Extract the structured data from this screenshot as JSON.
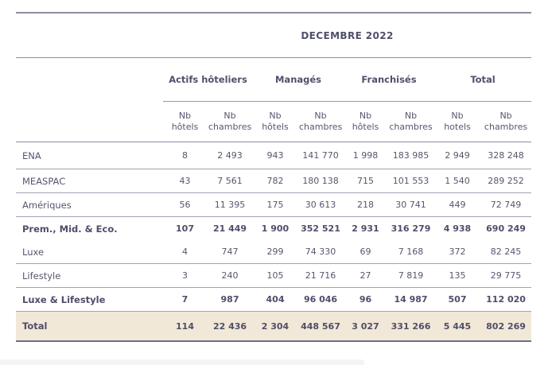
{
  "title": "DECEMBRE 2022",
  "table": {
    "groups": [
      {
        "label": "Actifs hôteliers"
      },
      {
        "label": "Managés"
      },
      {
        "label": "Franchisés"
      },
      {
        "label": "Total"
      }
    ],
    "subheaders": [
      "Nb hôtels",
      "Nb chambres",
      "Nb hôtels",
      "Nb chambres",
      "Nb hôtels",
      "Nb chambres",
      "Nb hotels",
      "Nb chambres"
    ],
    "rows": [
      {
        "label": "ENA",
        "emphasis": false,
        "highlight": false,
        "divider": true,
        "values": [
          "8",
          "2 493",
          "943",
          "141 770",
          "1 998",
          "183 985",
          "2 949",
          "328 248"
        ]
      },
      {
        "label": "MEASPAC",
        "emphasis": false,
        "highlight": false,
        "divider": true,
        "values": [
          "43",
          "7 561",
          "782",
          "180 138",
          "715",
          "101 553",
          "1 540",
          "289 252"
        ]
      },
      {
        "label": "Amériques",
        "emphasis": false,
        "highlight": false,
        "divider": true,
        "values": [
          "56",
          "11 395",
          "175",
          "30 613",
          "218",
          "30 741",
          "449",
          "72 749"
        ]
      },
      {
        "label": "Prem., Mid. & Eco.",
        "emphasis": true,
        "highlight": false,
        "divider": false,
        "values": [
          "107",
          "21 449",
          "1 900",
          "352 521",
          "2 931",
          "316 279",
          "4 938",
          "690 249"
        ]
      },
      {
        "label": "Luxe",
        "emphasis": false,
        "highlight": false,
        "divider": true,
        "values": [
          "4",
          "747",
          "299",
          "74 330",
          "69",
          "7 168",
          "372",
          "82 245"
        ]
      },
      {
        "label": "Lifestyle",
        "emphasis": false,
        "highlight": false,
        "divider": true,
        "values": [
          "3",
          "240",
          "105",
          "21 716",
          "27",
          "7 819",
          "135",
          "29 775"
        ]
      },
      {
        "label": "Luxe & Lifestyle",
        "emphasis": true,
        "highlight": false,
        "divider": true,
        "values": [
          "7",
          "987",
          "404",
          "96 046",
          "96",
          "14 987",
          "507",
          "112 020"
        ]
      },
      {
        "label": "Total",
        "emphasis": true,
        "highlight": true,
        "divider": true,
        "values": [
          "114",
          "22 436",
          "2 304",
          "448 567",
          "3 027",
          "331 266",
          "5 445",
          "802 269"
        ]
      }
    ]
  },
  "colors": {
    "text": "#56566f",
    "line": "#8d8da4",
    "row_line": "#a2a2b6",
    "total_row_background": "#f2e8d7",
    "total_row_border": "#6f6f8a"
  }
}
